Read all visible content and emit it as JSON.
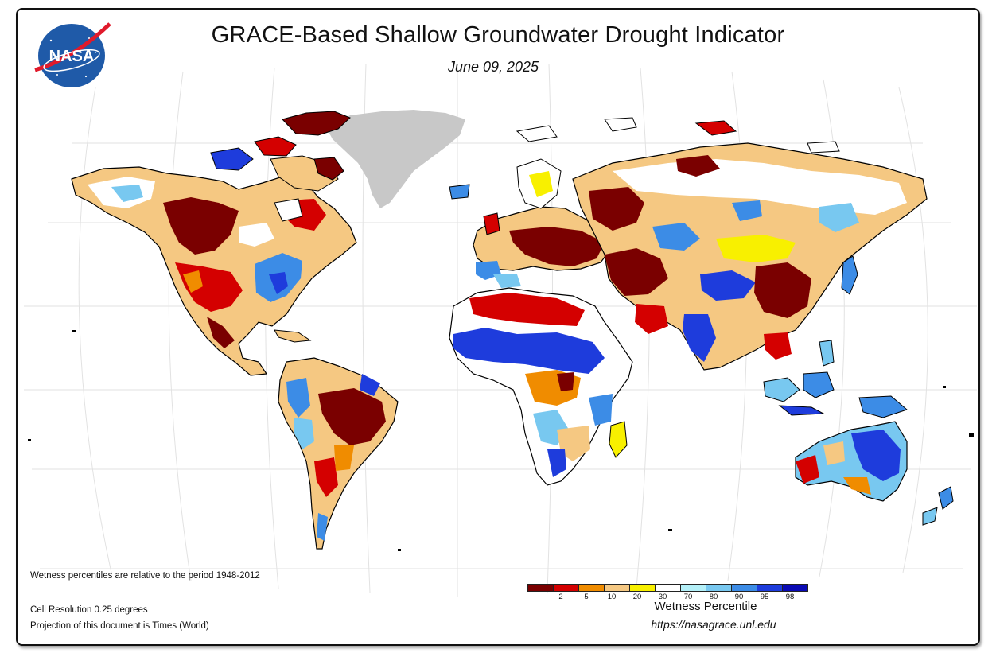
{
  "title": "GRACE-Based Shallow Groundwater Drought Indicator",
  "date": "June 09, 2025",
  "logo_text": "NASA",
  "notes": {
    "period": "Wetness percentiles are relative to the period 1948-2012",
    "resolution": "Cell Resolution 0.25 degrees",
    "projection": "Projection of this document is Times (World)"
  },
  "legend": {
    "title": "Wetness Percentile",
    "url": "https://nasagrace.unl.edu",
    "colors": [
      "#7a0000",
      "#d40000",
      "#f08c00",
      "#f5c882",
      "#f8f000",
      "#ffffff",
      "#b4f0f8",
      "#78c8f0",
      "#3c8ce6",
      "#1e3cdc",
      "#0a0ab4"
    ],
    "ticks": [
      "2",
      "5",
      "10",
      "20",
      "30",
      "70",
      "80",
      "90",
      "95",
      "98"
    ]
  },
  "map_colors": {
    "ocean": "#ffffff",
    "greenland": "#c8c8c8",
    "graticule": "#e2e2e2",
    "border": "#000000"
  }
}
